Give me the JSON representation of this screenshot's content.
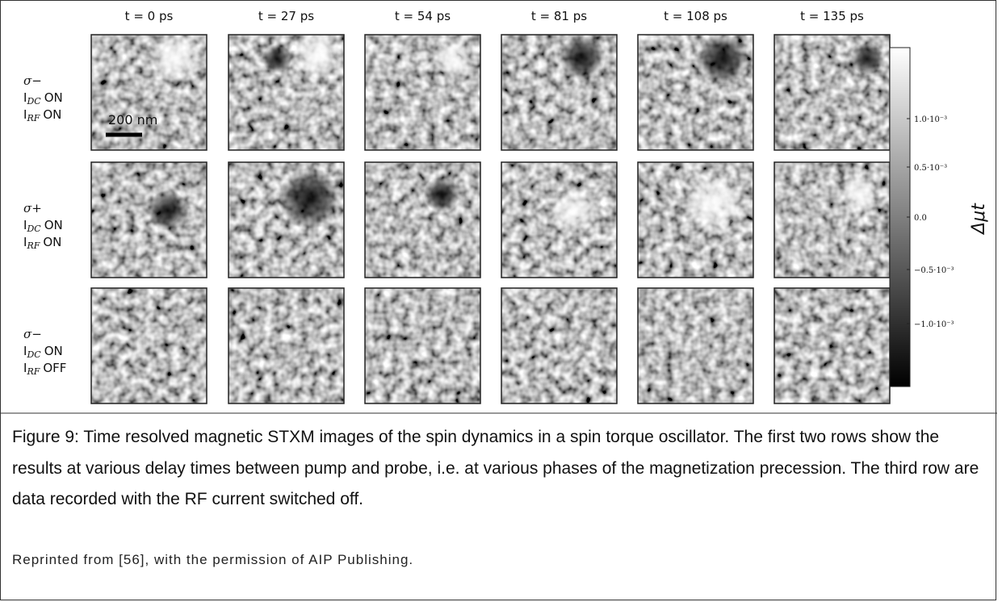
{
  "figure": {
    "columns": [
      "t = 0 ps",
      "t = 27 ps",
      "t = 54 ps",
      "t = 81 ps",
      "t = 108 ps",
      "t = 135 ps"
    ],
    "rows": [
      {
        "polarization": "σ−",
        "lines": [
          {
            "symbol": "I",
            "subscript": "DC",
            "state": "ON"
          },
          {
            "symbol": "I",
            "subscript": "RF",
            "state": "ON"
          }
        ]
      },
      {
        "polarization": "σ+",
        "lines": [
          {
            "symbol": "I",
            "subscript": "DC",
            "state": "ON"
          },
          {
            "symbol": "I",
            "subscript": "RF",
            "state": "ON"
          }
        ]
      },
      {
        "polarization": "σ−",
        "lines": [
          {
            "symbol": "I",
            "subscript": "DC",
            "state": "ON"
          },
          {
            "symbol": "I",
            "subscript": "RF",
            "state": "OFF"
          }
        ]
      }
    ],
    "scale_bar": "200 nm",
    "colorbar": {
      "label": "Δμt",
      "ticks": [
        "1.0·10⁻³",
        "0.5·10⁻³",
        "0.0",
        "−0.5·10⁻³",
        "−1.0·10⁻³"
      ]
    }
  },
  "caption": "Figure 9: Time resolved magnetic STXM images of the spin dynamics in a spin torque oscillator.  The first two rows show the results at various delay times between pump and probe, i.e. at various phases of the magnetization precession. The third row are data recorded with the RF current switched off.",
  "credit": "Reprinted from  [56], with the permission of AIP Publishing."
}
